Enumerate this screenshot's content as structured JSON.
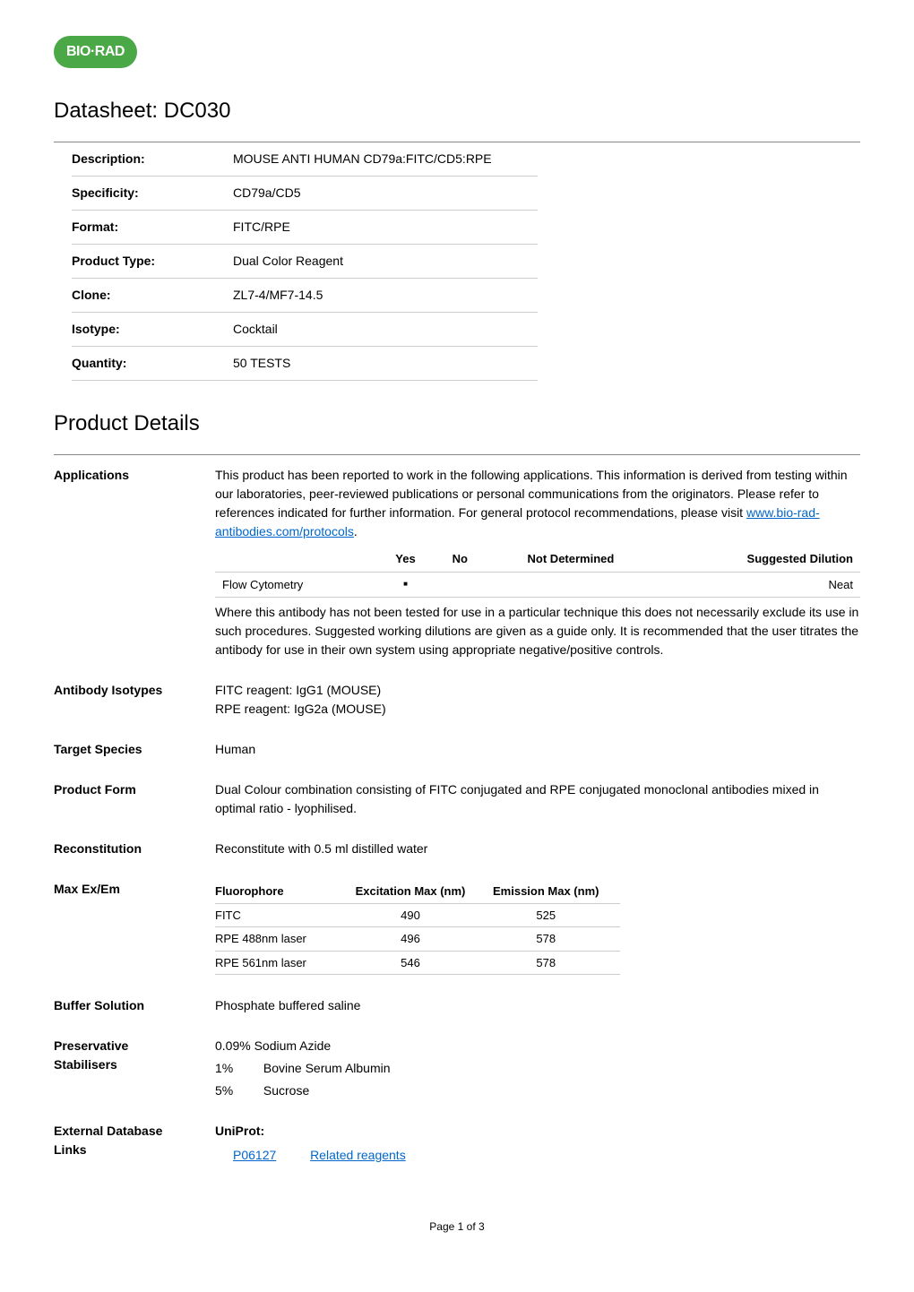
{
  "logo": "BIO·RAD",
  "datasheet_title": "Datasheet: DC030",
  "product_info": {
    "rows": [
      {
        "label": "Description:",
        "value": "MOUSE ANTI HUMAN CD79a:FITC/CD5:RPE"
      },
      {
        "label": "Specificity:",
        "value": "CD79a/CD5"
      },
      {
        "label": "Format:",
        "value": "FITC/RPE"
      },
      {
        "label": "Product Type:",
        "value": "Dual Color Reagent"
      },
      {
        "label": "Clone:",
        "value": "ZL7-4/MF7-14.5"
      },
      {
        "label": "Isotype:",
        "value": "Cocktail"
      },
      {
        "label": "Quantity:",
        "value": "50 TESTS"
      }
    ]
  },
  "product_details_title": "Product Details",
  "applications": {
    "label": "Applications",
    "intro1": "This product has been reported to work in the following applications. This information is derived from testing within our laboratories, peer-reviewed publications or personal communications from the originators. Please refer to references indicated for further information. For general protocol recommendations, please visit ",
    "link_text": "www.bio-rad-antibodies.com/protocols",
    "period": ".",
    "headers": {
      "yes": "Yes",
      "no": "No",
      "not_determined": "Not Determined",
      "suggested": "Suggested Dilution"
    },
    "row": {
      "name": "Flow Cytometry",
      "yes_mark": "■",
      "suggested": "Neat"
    },
    "note": "Where this antibody has not been tested for use in a particular technique this does not necessarily exclude its use in such procedures. Suggested working dilutions are given as a guide only. It is recommended that the user titrates the antibody for use in their own system using appropriate negative/positive controls."
  },
  "isotypes": {
    "label": "Antibody Isotypes",
    "line1": "FITC reagent: IgG1 (MOUSE)",
    "line2": "RPE reagent: IgG2a (MOUSE)"
  },
  "target_species": {
    "label": "Target Species",
    "value": "Human"
  },
  "product_form": {
    "label": "Product Form",
    "value": "Dual Colour combination consisting of FITC conjugated and RPE conjugated monoclonal antibodies mixed in optimal ratio - lyophilised."
  },
  "reconstitution": {
    "label": "Reconstitution",
    "value": "Reconstitute with 0.5 ml distilled water"
  },
  "max_ex_em": {
    "label": "Max Ex/Em",
    "headers": {
      "fluorophore": "Fluorophore",
      "excitation": "Excitation Max (nm)",
      "emission": "Emission Max (nm)"
    },
    "rows": [
      {
        "fluorophore": "FITC",
        "excitation": "490",
        "emission": "525"
      },
      {
        "fluorophore": "RPE 488nm laser",
        "excitation": "496",
        "emission": "578"
      },
      {
        "fluorophore": "RPE 561nm laser",
        "excitation": "546",
        "emission": "578"
      }
    ]
  },
  "buffer": {
    "label": "Buffer Solution",
    "value": "Phosphate buffered saline"
  },
  "preservative": {
    "label1": "Preservative",
    "label2": "Stabilisers",
    "line1": "0.09% Sodium Azide",
    "pct1": "1%",
    "val1": "Bovine Serum Albumin",
    "pct2": "5%",
    "val2": "Sucrose"
  },
  "external_db": {
    "label1": "External Database",
    "label2": "Links",
    "uniprot_label": "UniProt:",
    "uniprot_id": "P06127",
    "related": "Related reagents"
  },
  "page_footer": "Page 1 of 3"
}
